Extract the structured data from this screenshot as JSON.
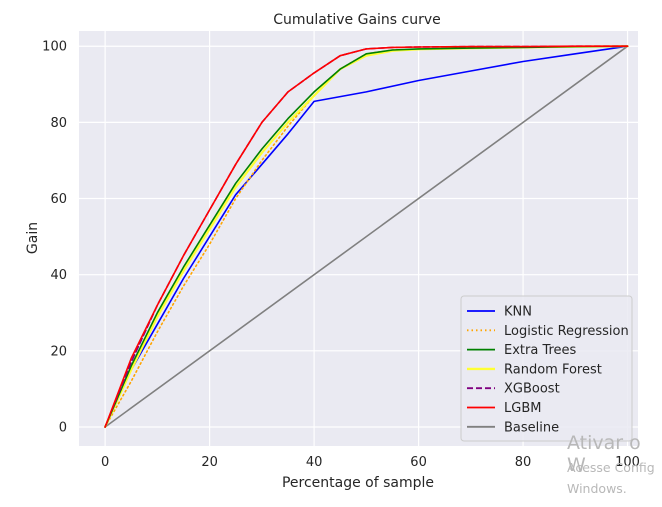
{
  "chart_data": {
    "type": "line",
    "title": "Cumulative Gains curve",
    "xlabel": "Percentage of sample",
    "ylabel": "Gain",
    "xlim": [
      -5,
      102
    ],
    "ylim": [
      -5,
      104
    ],
    "xticks": [
      0,
      20,
      40,
      60,
      80,
      100
    ],
    "yticks": [
      0,
      20,
      40,
      60,
      80,
      100
    ],
    "grid": true,
    "legend_position": "lower-right",
    "series": [
      {
        "name": "KNN",
        "color": "#0000ff",
        "dash": "solid",
        "x": [
          0,
          5,
          10,
          15,
          20,
          25,
          30,
          35,
          40,
          50,
          60,
          70,
          80,
          90,
          100
        ],
        "y": [
          0,
          15,
          27,
          39,
          50,
          61,
          69,
          77,
          85.5,
          88,
          91,
          93.5,
          96,
          98,
          100
        ]
      },
      {
        "name": "Logistic Regression",
        "color": "#ffa500",
        "dash": "dotted",
        "x": [
          0,
          5,
          10,
          15,
          20,
          25,
          30,
          35,
          40,
          45,
          50,
          55,
          60,
          70,
          80,
          90,
          100
        ],
        "y": [
          0,
          12,
          25,
          37,
          48,
          60,
          70,
          79,
          87,
          94,
          98,
          99,
          99.2,
          99.5,
          99.7,
          99.9,
          100
        ]
      },
      {
        "name": "Extra Trees",
        "color": "#008000",
        "dash": "solid",
        "x": [
          0,
          5,
          10,
          15,
          20,
          25,
          30,
          35,
          40,
          45,
          50,
          55,
          60,
          70,
          80,
          90,
          100
        ],
        "y": [
          0,
          16,
          30,
          42,
          53,
          64,
          73,
          81,
          88,
          94,
          98,
          99,
          99.3,
          99.5,
          99.7,
          99.9,
          100
        ]
      },
      {
        "name": "Random Forest",
        "color": "#ffff33",
        "dash": "solid",
        "x": [
          0,
          5,
          10,
          15,
          20,
          25,
          30,
          35,
          40,
          45,
          50,
          55,
          60,
          70,
          80,
          90,
          100
        ],
        "y": [
          0,
          15,
          29,
          41,
          52,
          63,
          72,
          80,
          87,
          94,
          97.5,
          98.8,
          99.2,
          99.5,
          99.7,
          99.9,
          100
        ]
      },
      {
        "name": "XGBoost",
        "color": "#800080",
        "dash": "dashed",
        "x": [
          0,
          5,
          10,
          15,
          20,
          25,
          30,
          35,
          40,
          45,
          50,
          55,
          60,
          70,
          80,
          90,
          100
        ],
        "y": [
          0,
          17,
          32,
          45,
          57,
          69,
          80,
          88,
          93,
          97.5,
          99.3,
          99.7,
          99.8,
          99.9,
          99.9,
          100,
          100
        ]
      },
      {
        "name": "LGBM",
        "color": "#ff0000",
        "dash": "solid",
        "x": [
          0,
          5,
          10,
          15,
          20,
          25,
          30,
          35,
          40,
          45,
          50,
          55,
          60,
          70,
          80,
          90,
          100
        ],
        "y": [
          0,
          18,
          32,
          45,
          57,
          69,
          80,
          88,
          93,
          97.5,
          99.3,
          99.7,
          99.8,
          99.9,
          99.9,
          100,
          100
        ]
      },
      {
        "name": "Baseline",
        "color": "#808080",
        "dash": "solid",
        "x": [
          0,
          100
        ],
        "y": [
          0,
          100
        ]
      }
    ]
  },
  "watermark": {
    "line1": "Ativar o W",
    "line2": "Acesse Config",
    "line3": "Windows."
  }
}
